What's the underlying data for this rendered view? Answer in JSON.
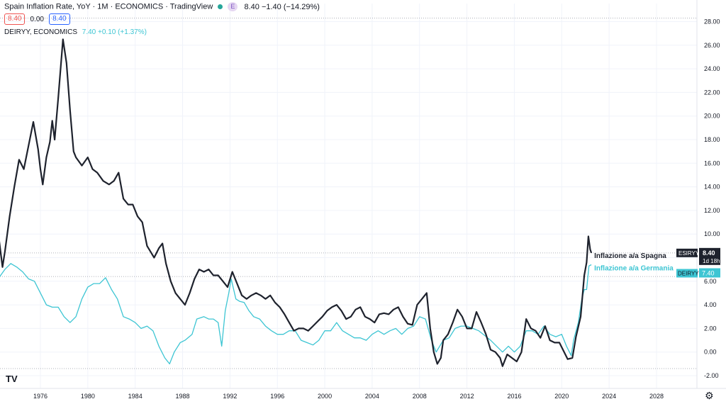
{
  "header": {
    "title": "Spain Inflation Rate, YoY · 1M · ECONOMICS · TradingView",
    "ohlc": "8.40 −1.40 (−14.29%)",
    "e_badge": "E",
    "pill_left": "8.40",
    "pill_mid": "0.00",
    "pill_right": "8.40",
    "series2_label": "DEIRYY, ECONOMICS",
    "series2_value": "7.40 +0.10 (+1.37%)"
  },
  "colors": {
    "spain": "#1e222d",
    "germany": "#3dc5d3",
    "badge_border_red": "#ef5350",
    "badge_border_blue": "#2962ff"
  },
  "icons": {
    "logo": "tradingview-logo-icon",
    "settings": "gear-icon"
  },
  "logo_text": "TV",
  "chart_data": {
    "type": "line",
    "ylim": [
      -2.5,
      29
    ],
    "xlim": [
      1972.5,
      2031.5
    ],
    "y_ticks": [
      "28.00",
      "26.00",
      "24.00",
      "22.00",
      "20.00",
      "18.00",
      "16.00",
      "14.00",
      "12.00",
      "10.00",
      "8.00",
      "6.00",
      "4.00",
      "2.00",
      "0.00",
      "-2.00"
    ],
    "y_tick_values": [
      28,
      26,
      24,
      22,
      20,
      18,
      16,
      14,
      12,
      10,
      8,
      6,
      4,
      2,
      0,
      -2
    ],
    "x_ticks": [
      "1976",
      "1980",
      "1984",
      "1988",
      "1992",
      "1996",
      "2000",
      "2004",
      "2008",
      "2012",
      "2016",
      "2020",
      "2024",
      "2028"
    ],
    "x_tick_values": [
      1976,
      1980,
      1984,
      1988,
      1992,
      1996,
      2000,
      2004,
      2008,
      2012,
      2016,
      2020,
      2024,
      2028
    ],
    "h_lines": [
      28.3,
      8.4,
      6.4,
      -1.4
    ],
    "series": [
      {
        "name": "Inflazione a/a Spagna",
        "tag": "ESIRYY",
        "last_value": "8.40",
        "countdown": "1d 18h",
        "color": "#1e222d",
        "points": [
          [
            1972.5,
            9.6
          ],
          [
            1972.8,
            7.2
          ],
          [
            1973.0,
            8.5
          ],
          [
            1973.4,
            11.5
          ],
          [
            1973.8,
            14.0
          ],
          [
            1974.2,
            16.3
          ],
          [
            1974.6,
            15.5
          ],
          [
            1975.0,
            17.5
          ],
          [
            1975.4,
            19.5
          ],
          [
            1975.8,
            17.2
          ],
          [
            1976.0,
            15.5
          ],
          [
            1976.2,
            14.2
          ],
          [
            1976.5,
            16.5
          ],
          [
            1976.8,
            17.8
          ],
          [
            1977.0,
            19.6
          ],
          [
            1977.2,
            18.0
          ],
          [
            1977.5,
            21.5
          ],
          [
            1977.9,
            26.5
          ],
          [
            1978.2,
            24.5
          ],
          [
            1978.5,
            20.5
          ],
          [
            1978.8,
            17.0
          ],
          [
            1979.0,
            16.5
          ],
          [
            1979.5,
            15.8
          ],
          [
            1980.0,
            16.5
          ],
          [
            1980.4,
            15.5
          ],
          [
            1980.8,
            15.2
          ],
          [
            1981.3,
            14.5
          ],
          [
            1981.8,
            14.2
          ],
          [
            1982.2,
            14.5
          ],
          [
            1982.6,
            15.2
          ],
          [
            1983.0,
            13.0
          ],
          [
            1983.4,
            12.5
          ],
          [
            1983.8,
            12.5
          ],
          [
            1984.2,
            11.5
          ],
          [
            1984.6,
            11.0
          ],
          [
            1985.0,
            9.0
          ],
          [
            1985.3,
            8.5
          ],
          [
            1985.6,
            8.0
          ],
          [
            1986.0,
            8.8
          ],
          [
            1986.3,
            9.2
          ],
          [
            1986.6,
            7.5
          ],
          [
            1987.0,
            6.0
          ],
          [
            1987.4,
            5.0
          ],
          [
            1987.8,
            4.5
          ],
          [
            1988.2,
            4.0
          ],
          [
            1988.6,
            5.0
          ],
          [
            1989.0,
            6.2
          ],
          [
            1989.4,
            7.0
          ],
          [
            1989.8,
            6.8
          ],
          [
            1990.2,
            7.0
          ],
          [
            1990.6,
            6.5
          ],
          [
            1991.0,
            6.5
          ],
          [
            1991.4,
            6.0
          ],
          [
            1991.8,
            5.5
          ],
          [
            1992.2,
            6.8
          ],
          [
            1992.6,
            5.8
          ],
          [
            1993.0,
            4.8
          ],
          [
            1993.4,
            4.5
          ],
          [
            1993.8,
            4.8
          ],
          [
            1994.2,
            5.0
          ],
          [
            1994.6,
            4.8
          ],
          [
            1995.0,
            4.5
          ],
          [
            1995.4,
            4.8
          ],
          [
            1995.8,
            4.2
          ],
          [
            1996.2,
            3.8
          ],
          [
            1996.6,
            3.2
          ],
          [
            1997.0,
            2.5
          ],
          [
            1997.4,
            1.8
          ],
          [
            1997.8,
            2.0
          ],
          [
            1998.2,
            2.0
          ],
          [
            1998.6,
            1.8
          ],
          [
            1999.0,
            2.2
          ],
          [
            1999.4,
            2.6
          ],
          [
            1999.8,
            3.0
          ],
          [
            2000.2,
            3.5
          ],
          [
            2000.6,
            3.8
          ],
          [
            2001.0,
            4.0
          ],
          [
            2001.4,
            3.5
          ],
          [
            2001.8,
            2.8
          ],
          [
            2002.2,
            3.0
          ],
          [
            2002.6,
            3.6
          ],
          [
            2003.0,
            3.8
          ],
          [
            2003.4,
            3.0
          ],
          [
            2003.8,
            2.8
          ],
          [
            2004.2,
            2.5
          ],
          [
            2004.6,
            3.2
          ],
          [
            2005.0,
            3.3
          ],
          [
            2005.4,
            3.2
          ],
          [
            2005.8,
            3.6
          ],
          [
            2006.2,
            3.8
          ],
          [
            2006.6,
            3.0
          ],
          [
            2007.0,
            2.4
          ],
          [
            2007.4,
            2.3
          ],
          [
            2007.8,
            4.0
          ],
          [
            2008.2,
            4.5
          ],
          [
            2008.6,
            5.0
          ],
          [
            2008.9,
            2.0
          ],
          [
            2009.2,
            0.0
          ],
          [
            2009.5,
            -1.0
          ],
          [
            2009.8,
            -0.5
          ],
          [
            2010.0,
            1.0
          ],
          [
            2010.4,
            1.5
          ],
          [
            2010.8,
            2.5
          ],
          [
            2011.2,
            3.6
          ],
          [
            2011.6,
            3.0
          ],
          [
            2012.0,
            2.0
          ],
          [
            2012.4,
            2.0
          ],
          [
            2012.8,
            3.4
          ],
          [
            2013.2,
            2.5
          ],
          [
            2013.6,
            1.5
          ],
          [
            2014.0,
            0.2
          ],
          [
            2014.4,
            0.0
          ],
          [
            2014.8,
            -0.5
          ],
          [
            2015.0,
            -1.2
          ],
          [
            2015.4,
            -0.2
          ],
          [
            2015.8,
            -0.5
          ],
          [
            2016.2,
            -0.8
          ],
          [
            2016.6,
            0.0
          ],
          [
            2017.0,
            2.8
          ],
          [
            2017.4,
            2.0
          ],
          [
            2017.8,
            1.8
          ],
          [
            2018.2,
            1.2
          ],
          [
            2018.6,
            2.2
          ],
          [
            2019.0,
            1.0
          ],
          [
            2019.4,
            0.8
          ],
          [
            2019.8,
            0.8
          ],
          [
            2020.2,
            0.0
          ],
          [
            2020.5,
            -0.6
          ],
          [
            2020.9,
            -0.5
          ],
          [
            2021.2,
            1.3
          ],
          [
            2021.6,
            3.0
          ],
          [
            2021.9,
            6.5
          ],
          [
            2022.1,
            7.6
          ],
          [
            2022.25,
            9.8
          ],
          [
            2022.4,
            8.7
          ],
          [
            2022.5,
            8.4
          ]
        ]
      },
      {
        "name": "Inflazione a/a Germania",
        "tag": "DEIRYY",
        "last_value": "7.40",
        "color": "#3dc5d3",
        "points": [
          [
            1972.5,
            6.3
          ],
          [
            1973.0,
            7.0
          ],
          [
            1973.5,
            7.5
          ],
          [
            1974.0,
            7.2
          ],
          [
            1974.5,
            6.8
          ],
          [
            1975.0,
            6.2
          ],
          [
            1975.5,
            6.0
          ],
          [
            1976.0,
            5.0
          ],
          [
            1976.5,
            4.0
          ],
          [
            1977.0,
            3.8
          ],
          [
            1977.5,
            3.8
          ],
          [
            1978.0,
            3.0
          ],
          [
            1978.5,
            2.5
          ],
          [
            1979.0,
            3.0
          ],
          [
            1979.5,
            4.5
          ],
          [
            1980.0,
            5.5
          ],
          [
            1980.5,
            5.8
          ],
          [
            1981.0,
            5.8
          ],
          [
            1981.5,
            6.3
          ],
          [
            1982.0,
            5.3
          ],
          [
            1982.5,
            4.5
          ],
          [
            1983.0,
            3.0
          ],
          [
            1983.5,
            2.8
          ],
          [
            1984.0,
            2.5
          ],
          [
            1984.5,
            2.0
          ],
          [
            1985.0,
            2.2
          ],
          [
            1985.5,
            1.8
          ],
          [
            1986.0,
            0.5
          ],
          [
            1986.5,
            -0.5
          ],
          [
            1986.9,
            -1.0
          ],
          [
            1987.3,
            0.0
          ],
          [
            1987.8,
            0.8
          ],
          [
            1988.2,
            1.0
          ],
          [
            1988.8,
            1.5
          ],
          [
            1989.2,
            2.8
          ],
          [
            1989.8,
            3.0
          ],
          [
            1990.2,
            2.8
          ],
          [
            1990.6,
            2.8
          ],
          [
            1991.0,
            2.5
          ],
          [
            1991.3,
            0.5
          ],
          [
            1991.6,
            3.5
          ],
          [
            1991.9,
            5.0
          ],
          [
            1992.1,
            6.2
          ],
          [
            1992.5,
            4.5
          ],
          [
            1992.8,
            4.3
          ],
          [
            1993.2,
            4.2
          ],
          [
            1993.6,
            3.5
          ],
          [
            1994.0,
            3.0
          ],
          [
            1994.5,
            2.8
          ],
          [
            1995.0,
            2.2
          ],
          [
            1995.5,
            1.8
          ],
          [
            1996.0,
            1.5
          ],
          [
            1996.5,
            1.5
          ],
          [
            1997.0,
            1.8
          ],
          [
            1997.5,
            1.8
          ],
          [
            1998.0,
            1.0
          ],
          [
            1998.5,
            0.8
          ],
          [
            1999.0,
            0.6
          ],
          [
            1999.5,
            1.0
          ],
          [
            2000.0,
            1.8
          ],
          [
            2000.5,
            1.8
          ],
          [
            2001.0,
            2.5
          ],
          [
            2001.5,
            1.8
          ],
          [
            2002.0,
            1.5
          ],
          [
            2002.5,
            1.2
          ],
          [
            2003.0,
            1.2
          ],
          [
            2003.5,
            1.0
          ],
          [
            2004.0,
            1.5
          ],
          [
            2004.5,
            1.8
          ],
          [
            2005.0,
            1.5
          ],
          [
            2005.5,
            1.8
          ],
          [
            2006.0,
            2.0
          ],
          [
            2006.5,
            1.5
          ],
          [
            2007.0,
            2.0
          ],
          [
            2007.5,
            2.2
          ],
          [
            2008.0,
            3.0
          ],
          [
            2008.5,
            2.8
          ],
          [
            2009.0,
            1.0
          ],
          [
            2009.4,
            0.0
          ],
          [
            2009.7,
            0.5
          ],
          [
            2010.0,
            1.0
          ],
          [
            2010.5,
            1.2
          ],
          [
            2011.0,
            2.0
          ],
          [
            2011.5,
            2.2
          ],
          [
            2012.0,
            2.2
          ],
          [
            2012.5,
            2.0
          ],
          [
            2013.0,
            1.8
          ],
          [
            2013.5,
            1.4
          ],
          [
            2014.0,
            1.0
          ],
          [
            2014.5,
            0.5
          ],
          [
            2015.0,
            0.0
          ],
          [
            2015.5,
            0.5
          ],
          [
            2016.0,
            0.0
          ],
          [
            2016.5,
            0.5
          ],
          [
            2017.0,
            1.8
          ],
          [
            2017.5,
            1.8
          ],
          [
            2018.0,
            1.5
          ],
          [
            2018.5,
            2.2
          ],
          [
            2019.0,
            1.5
          ],
          [
            2019.5,
            1.3
          ],
          [
            2020.0,
            1.5
          ],
          [
            2020.4,
            0.5
          ],
          [
            2020.8,
            -0.3
          ],
          [
            2021.0,
            1.0
          ],
          [
            2021.4,
            2.5
          ],
          [
            2021.7,
            4.5
          ],
          [
            2021.9,
            5.3
          ],
          [
            2022.1,
            5.3
          ],
          [
            2022.3,
            7.3
          ],
          [
            2022.5,
            7.4
          ]
        ]
      }
    ]
  }
}
